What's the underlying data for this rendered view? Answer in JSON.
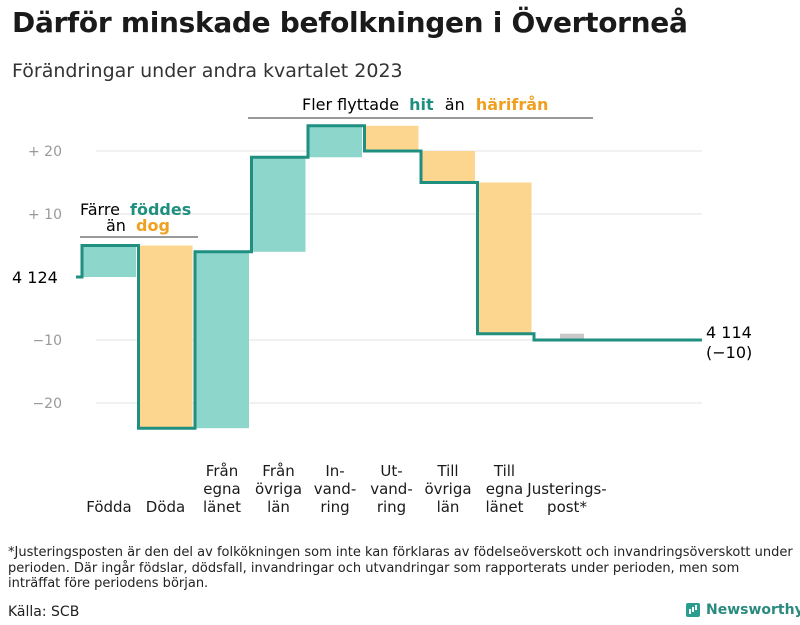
{
  "title": "Därför minskade befolkningen i Övertorneå",
  "subtitle": "Förändringar under andra kvartalet 2023",
  "annotations": {
    "births": {
      "line1": "Färre",
      "emph1": "föddes",
      "line2": "än",
      "emph2": "dog"
    },
    "migration": {
      "prefix": "Fler flyttade",
      "emph1": "hit",
      "middle": "än",
      "emph2": "härifrån"
    }
  },
  "start_label": "4 124",
  "end_label": {
    "line1": "4 114",
    "line2": "(−10)"
  },
  "footnote": "*Justeringsposten är den del av folkökningen som inte kan förklaras av födelseöverskott och invandringsöverskott under perioden. Där ingår födslar, dödsfall, invandringar och utvandringar som rapporterats under perioden, men som inträffat före periodens början.",
  "source": "Källa: SCB",
  "brand": "Newsworthy",
  "colors": {
    "increase": "#8dd6cc",
    "decrease": "#fcd58f",
    "adjust": "#c8c8c8",
    "line": "#1f8f80",
    "hit": "#1f8f80",
    "harifran": "#f0a020"
  },
  "chart_data": {
    "type": "waterfall",
    "start_value": 4124,
    "end_value": 4114,
    "ylim": [
      -27,
      25
    ],
    "yticks": [
      {
        "value": 20,
        "label": "+ 20"
      },
      {
        "value": 10,
        "label": "+ 10"
      },
      {
        "value": -10,
        "label": "−10"
      },
      {
        "value": -20,
        "label": "−20"
      }
    ],
    "steps": [
      {
        "label": "Födda",
        "change": 5,
        "kind": "increase"
      },
      {
        "label": "Döda",
        "change": -29,
        "kind": "decrease"
      },
      {
        "label": "Från egna länet",
        "change": 28,
        "kind": "increase"
      },
      {
        "label": "Från övriga län",
        "change": 15,
        "kind": "increase"
      },
      {
        "label": "Invandring",
        "change": 5,
        "kind": "increase"
      },
      {
        "label": "Utvandring",
        "change": -4,
        "kind": "decrease"
      },
      {
        "label": "Till övriga län",
        "change": -5,
        "kind": "decrease"
      },
      {
        "label": "Till egna länet",
        "change": -24,
        "kind": "decrease"
      },
      {
        "label": "Justeringspost*",
        "change": -1,
        "kind": "adjust"
      }
    ],
    "category_labels": [
      [
        "Födda"
      ],
      [
        "Döda"
      ],
      [
        "Från",
        "egna",
        "länet"
      ],
      [
        "Från",
        "övriga",
        "län"
      ],
      [
        "In-",
        "vand-",
        "ring"
      ],
      [
        "Ut-",
        "vand-",
        "ring"
      ],
      [
        "Till",
        "övriga",
        "län"
      ],
      [
        "Till",
        "egna",
        "länet"
      ],
      [
        "Justerings-",
        "post*"
      ]
    ]
  }
}
